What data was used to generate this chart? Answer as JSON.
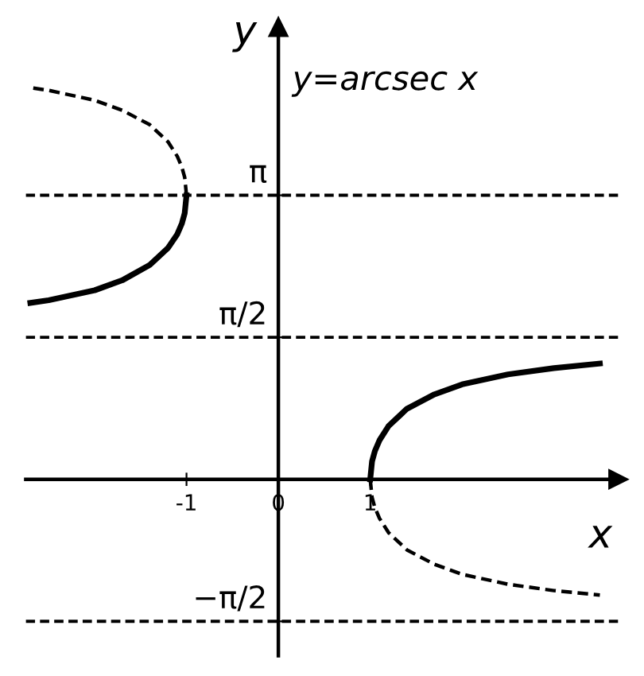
{
  "chart_data": {
    "type": "line",
    "xlabel": "x",
    "ylabel": "y",
    "annotations": [
      "y=arcsec x"
    ],
    "series": [
      {
        "color": "#000000",
        "line_style": "solid",
        "x": [
          1,
          1.02,
          1.05,
          1.1,
          1.2,
          1.4,
          1.7,
          2.0,
          2.5,
          3.0,
          3.5
        ],
        "values": [
          0,
          0.2,
          0.31,
          0.43,
          0.59,
          0.78,
          0.94,
          1.05,
          1.16,
          1.23,
          1.28
        ]
      },
      {
        "color": "#000000",
        "line_style": "solid",
        "x": [
          -1,
          -1.02,
          -1.05,
          -1.1,
          -1.2,
          -1.4,
          -1.7,
          -2.0,
          -2.5,
          -2.7
        ],
        "values": [
          3.14,
          2.94,
          2.83,
          2.71,
          2.56,
          2.37,
          2.2,
          2.09,
          1.98,
          1.95
        ]
      },
      {
        "color": "#000000",
        "line_style": "dashed",
        "x": [
          -1,
          -1.02,
          -1.05,
          -1.1,
          -1.2,
          -1.4,
          -1.7,
          -2.0,
          -2.5,
          -2.7
        ],
        "values": [
          3.14,
          3.34,
          3.45,
          3.57,
          3.73,
          3.92,
          4.08,
          4.19,
          4.3,
          4.33
        ]
      },
      {
        "color": "#000000",
        "line_style": "dashed",
        "x": [
          1,
          1.02,
          1.05,
          1.1,
          1.2,
          1.4,
          1.7,
          2.0,
          2.5,
          3.0,
          3.5
        ],
        "values": [
          0,
          -0.2,
          -0.31,
          -0.43,
          -0.59,
          -0.78,
          -0.94,
          -1.05,
          -1.16,
          -1.23,
          -1.28
        ]
      }
    ],
    "ref_lines": [
      {
        "axis": "y",
        "value": 3.14,
        "label": null,
        "color": "#000000",
        "line_style": "dashed"
      },
      {
        "axis": "y",
        "value": 1.57,
        "label": null,
        "color": "#000000",
        "line_style": "dashed"
      },
      {
        "axis": "y",
        "value": -1.57,
        "label": null,
        "color": "#000000",
        "line_style": "dashed"
      }
    ],
    "xlim": [
      -2.75,
      3.7
    ],
    "ylim": [
      -1.95,
      5.0
    ],
    "xticks": [
      -1,
      0,
      1
    ],
    "yticks": [
      {
        "value": 3.14,
        "label": "π"
      },
      {
        "value": 1.57,
        "label": "π/2"
      },
      {
        "value": -1.57,
        "label": "−π/2"
      }
    ],
    "grid": false,
    "legend": false,
    "marker": "none"
  }
}
